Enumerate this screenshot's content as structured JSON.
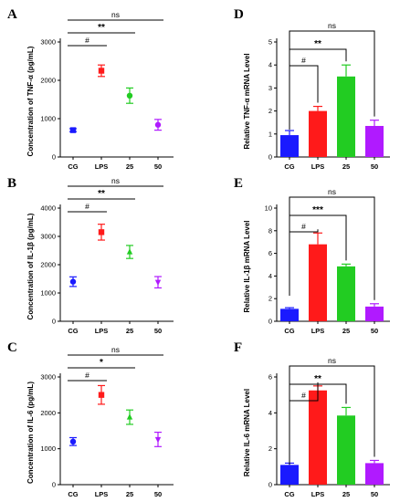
{
  "figure": {
    "categories": [
      "CG",
      "LPS",
      "25",
      "50"
    ],
    "colors": [
      "#1a1aff",
      "#ff1a1a",
      "#22cc22",
      "#b01aff"
    ]
  },
  "chart_data": [
    {
      "panel": "A",
      "type": "scatter",
      "ylabel": "Concentration of TNF-α (pg/mL)",
      "ylim": [
        0,
        3000
      ],
      "yticks": [
        "0",
        "1000",
        "2000",
        "3000"
      ],
      "ytick_values": [
        0,
        1000,
        2000,
        3000
      ],
      "categories": [
        "CG",
        "LPS",
        "25",
        "50"
      ],
      "values": [
        700,
        2250,
        1600,
        840
      ],
      "errors": [
        40,
        150,
        200,
        140
      ],
      "markers": [
        "square",
        "square",
        "circle",
        "circle"
      ],
      "significance": [
        {
          "from": 0,
          "to": 1,
          "label": "#"
        },
        {
          "from": 0,
          "to": 2,
          "label": "**"
        },
        {
          "from": 0,
          "to": 3,
          "label": "ns"
        }
      ]
    },
    {
      "panel": "B",
      "type": "scatter",
      "ylabel": "Concentration of IL-1β (pg/mL)",
      "ylim": [
        0,
        4000
      ],
      "yticks": [
        "0",
        "1000",
        "2000",
        "3000",
        "4000"
      ],
      "ytick_values": [
        0,
        1000,
        2000,
        3000,
        4000
      ],
      "categories": [
        "CG",
        "LPS",
        "25",
        "50"
      ],
      "values": [
        1400,
        3150,
        2450,
        1380
      ],
      "errors": [
        170,
        280,
        230,
        200
      ],
      "markers": [
        "circle",
        "square",
        "triangle",
        "triangle-down"
      ],
      "significance": [
        {
          "from": 0,
          "to": 1,
          "label": "#"
        },
        {
          "from": 0,
          "to": 2,
          "label": "**"
        },
        {
          "from": 0,
          "to": 3,
          "label": "ns"
        }
      ]
    },
    {
      "panel": "C",
      "type": "scatter",
      "ylabel": "Concentration of IL-6 (pg/mL)",
      "ylim": [
        0,
        3000
      ],
      "yticks": [
        "0",
        "1000",
        "2000",
        "3000"
      ],
      "ytick_values": [
        0,
        1000,
        2000,
        3000
      ],
      "categories": [
        "CG",
        "LPS",
        "25",
        "50"
      ],
      "values": [
        1200,
        2500,
        1880,
        1260
      ],
      "errors": [
        110,
        260,
        200,
        200
      ],
      "markers": [
        "circle",
        "square",
        "triangle",
        "triangle-down"
      ],
      "significance": [
        {
          "from": 0,
          "to": 1,
          "label": "#"
        },
        {
          "from": 0,
          "to": 2,
          "label": "*"
        },
        {
          "from": 0,
          "to": 3,
          "label": "ns"
        }
      ]
    },
    {
      "panel": "D",
      "type": "bar",
      "ylabel": "Relative TNF-α mRNA  Level",
      "ylim": [
        0,
        5
      ],
      "yticks": [
        "0",
        "1",
        "2",
        "3",
        "4",
        "5"
      ],
      "ytick_values": [
        0,
        1,
        2,
        3,
        4,
        5
      ],
      "categories": [
        "CG",
        "LPS",
        "25",
        "50"
      ],
      "values": [
        0.95,
        2.0,
        3.5,
        1.35
      ],
      "errors": [
        0.2,
        0.2,
        0.5,
        0.25
      ],
      "significance": [
        {
          "from": 0,
          "to": 1,
          "label": "#"
        },
        {
          "from": 0,
          "to": 2,
          "label": "**"
        },
        {
          "from": 0,
          "to": 3,
          "label": "ns"
        }
      ]
    },
    {
      "panel": "E",
      "type": "bar",
      "ylabel": "Relative IL-1β mRNA  Level",
      "ylim": [
        0,
        10
      ],
      "yticks": [
        "0",
        "2",
        "4",
        "6",
        "8",
        "10"
      ],
      "ytick_values": [
        0,
        2,
        4,
        6,
        8,
        10
      ],
      "categories": [
        "CG",
        "LPS",
        "25",
        "50"
      ],
      "values": [
        1.1,
        6.8,
        4.85,
        1.3
      ],
      "errors": [
        0.1,
        1.0,
        0.2,
        0.25
      ],
      "significance": [
        {
          "from": 0,
          "to": 1,
          "label": "#"
        },
        {
          "from": 0,
          "to": 2,
          "label": "***"
        },
        {
          "from": 0,
          "to": 3,
          "label": "ns"
        }
      ]
    },
    {
      "panel": "F",
      "type": "bar",
      "ylabel": "Relative IL-6 mRNA  Level",
      "ylim": [
        0,
        6
      ],
      "yticks": [
        "0",
        "2",
        "4",
        "6"
      ],
      "ytick_values": [
        0,
        2,
        4,
        6
      ],
      "categories": [
        "CG",
        "LPS",
        "25",
        "50"
      ],
      "values": [
        1.1,
        5.25,
        3.85,
        1.2
      ],
      "errors": [
        0.1,
        0.25,
        0.45,
        0.15
      ],
      "significance": [
        {
          "from": 0,
          "to": 1,
          "label": "#"
        },
        {
          "from": 0,
          "to": 2,
          "label": "**"
        },
        {
          "from": 0,
          "to": 3,
          "label": "ns"
        }
      ]
    }
  ]
}
